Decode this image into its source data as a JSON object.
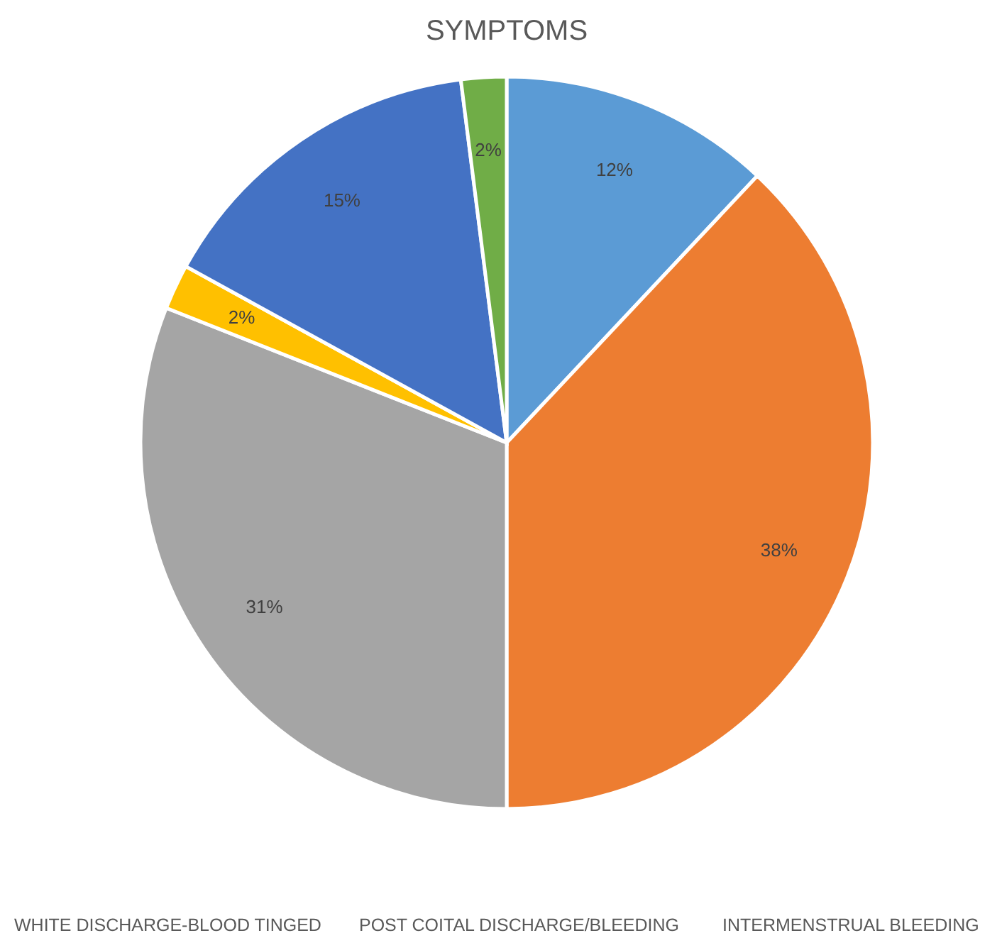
{
  "chart_data": {
    "type": "pie",
    "title": "SYMPTOMS",
    "categories": [
      null,
      null,
      null,
      null,
      null,
      null
    ],
    "values": [
      12,
      38,
      31,
      2,
      15,
      2
    ],
    "colors": [
      "#5b9bd5",
      "#ed7d31",
      "#a5a5a5",
      "#ffc000",
      "#4472c4",
      "#70ad47"
    ],
    "value_labels": [
      "12%",
      "38%",
      "31%",
      "2%",
      "15%",
      "2%"
    ],
    "annotations": [
      "WHITE DISCHARGE-BLOOD TINGED",
      "POST COITAL DISCHARGE/BLEEDING",
      "INTERMENSTRUAL BLEEDING"
    ]
  }
}
